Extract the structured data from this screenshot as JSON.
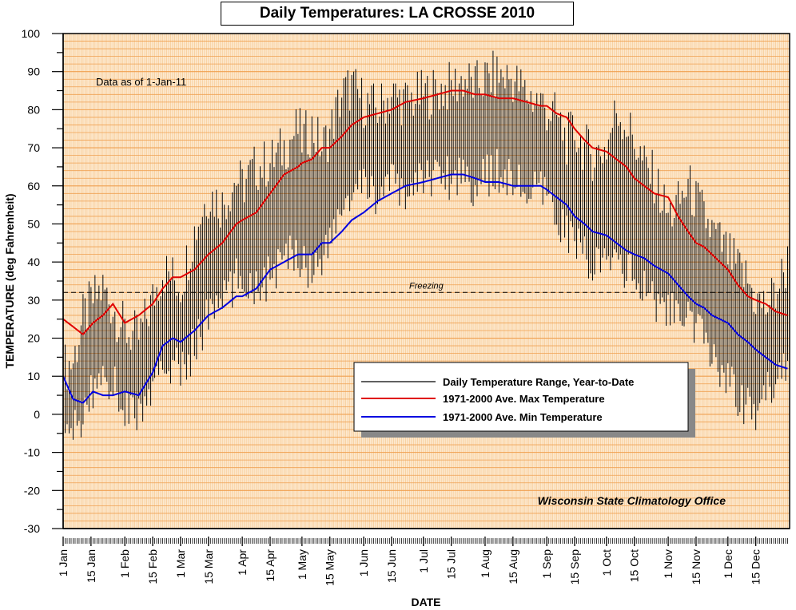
{
  "chart_data": {
    "type": "line",
    "title": "Daily Temperatures: LA CROSSE 2010",
    "xlabel": "DATE",
    "ylabel": "TEMPERATURE (deg Fahrenheit)",
    "ylim": [
      -30,
      100
    ],
    "yticks": [
      -30,
      -20,
      -10,
      0,
      10,
      20,
      30,
      40,
      50,
      60,
      70,
      80,
      90,
      100
    ],
    "xlim_days": [
      0,
      365
    ],
    "grid": true,
    "legend_position": "right, mid-height",
    "data_note": "Data as of 1-Jan-11",
    "credit": "Wisconsin State Climatology Office",
    "freezing": {
      "label": "Freezing",
      "value": 32
    },
    "x_ticks": [
      {
        "label": "1 Jan",
        "day": 0
      },
      {
        "label": "15 Jan",
        "day": 14
      },
      {
        "label": "1 Feb",
        "day": 31
      },
      {
        "label": "15 Feb",
        "day": 45
      },
      {
        "label": "1 Mar",
        "day": 59
      },
      {
        "label": "15 Mar",
        "day": 73
      },
      {
        "label": "1 Apr",
        "day": 90
      },
      {
        "label": "15 Apr",
        "day": 104
      },
      {
        "label": "1 May",
        "day": 120
      },
      {
        "label": "15 May",
        "day": 134
      },
      {
        "label": "1 Jun",
        "day": 151
      },
      {
        "label": "15 Jun",
        "day": 165
      },
      {
        "label": "1 Jul",
        "day": 181
      },
      {
        "label": "15 Jul",
        "day": 195
      },
      {
        "label": "1 Aug",
        "day": 212
      },
      {
        "label": "15 Aug",
        "day": 226
      },
      {
        "label": "1 Sep",
        "day": 243
      },
      {
        "label": "15 Sep",
        "day": 257
      },
      {
        "label": "1 Oct",
        "day": 273
      },
      {
        "label": "15 Oct",
        "day": 287
      },
      {
        "label": "1 Nov",
        "day": 304
      },
      {
        "label": "15 Nov",
        "day": 318
      },
      {
        "label": "1 Dec",
        "day": 334
      },
      {
        "label": "15 Dec",
        "day": 348
      }
    ],
    "colors": {
      "plot_bg": "#fde9cf",
      "grid_h": "#f0a050",
      "grid_v": "#f6c890",
      "range": "#000000",
      "avg_max": "#e00000",
      "avg_min": "#0000e0"
    },
    "series": [
      {
        "name": "1971-2000 Ave. Max Temperature",
        "color": "#e00000",
        "x": [
          0,
          5,
          10,
          15,
          20,
          25,
          31,
          38,
          45,
          50,
          55,
          59,
          66,
          73,
          80,
          87,
          90,
          97,
          104,
          111,
          118,
          120,
          125,
          130,
          134,
          140,
          145,
          151,
          158,
          165,
          172,
          181,
          188,
          195,
          201,
          207,
          212,
          219,
          226,
          233,
          240,
          243,
          248,
          253,
          257,
          262,
          266,
          273,
          278,
          283,
          287,
          292,
          297,
          304,
          309,
          314,
          318,
          322,
          326,
          334,
          339,
          344,
          348,
          353,
          358,
          364
        ],
        "values": [
          25,
          23,
          21,
          24,
          26,
          29,
          24,
          26,
          29,
          33,
          36,
          36,
          38,
          42,
          45,
          50,
          51,
          53,
          58,
          63,
          65,
          66,
          67,
          70,
          70,
          73,
          76,
          78,
          79,
          80,
          82,
          83,
          84,
          85,
          85,
          84,
          84,
          83,
          83,
          82,
          81,
          81,
          79,
          78,
          75,
          72,
          70,
          69,
          67,
          65,
          62,
          60,
          58,
          57,
          52,
          48,
          45,
          44,
          42,
          38,
          34,
          31,
          30,
          29,
          27,
          26
        ]
      },
      {
        "name": "1971-2000 Ave. Min Temperature",
        "color": "#0000e0",
        "x": [
          0,
          5,
          10,
          15,
          20,
          25,
          31,
          38,
          45,
          50,
          55,
          59,
          66,
          73,
          80,
          87,
          90,
          97,
          104,
          111,
          118,
          120,
          125,
          130,
          134,
          140,
          145,
          151,
          158,
          165,
          172,
          181,
          188,
          195,
          201,
          207,
          212,
          219,
          226,
          233,
          240,
          243,
          248,
          253,
          257,
          262,
          266,
          273,
          278,
          283,
          287,
          292,
          297,
          304,
          309,
          314,
          318,
          322,
          326,
          334,
          339,
          344,
          348,
          353,
          358,
          364
        ],
        "values": [
          10,
          4,
          3,
          6,
          5,
          5,
          6,
          5,
          11,
          18,
          20,
          19,
          22,
          26,
          28,
          31,
          31,
          33,
          38,
          40,
          42,
          42,
          42,
          45,
          45,
          48,
          51,
          53,
          56,
          58,
          60,
          61,
          62,
          63,
          63,
          62,
          61,
          61,
          60,
          60,
          60,
          59,
          57,
          55,
          52,
          50,
          48,
          47,
          45,
          43,
          42,
          41,
          39,
          37,
          34,
          31,
          29,
          28,
          26,
          24,
          21,
          19,
          17,
          15,
          13,
          12
        ]
      }
    ],
    "range_series": {
      "name": "Daily Temperature Range, Year-to-Date",
      "color": "#000000",
      "anchor_days": [
        0,
        5,
        10,
        15,
        20,
        25,
        31,
        38,
        45,
        50,
        55,
        59,
        66,
        73,
        80,
        87,
        90,
        97,
        104,
        111,
        118,
        120,
        125,
        130,
        134,
        140,
        145,
        151,
        158,
        165,
        172,
        181,
        188,
        195,
        201,
        207,
        212,
        219,
        226,
        233,
        240,
        243,
        248,
        253,
        257,
        262,
        266,
        273,
        278,
        283,
        287,
        292,
        297,
        304,
        309,
        314,
        318,
        322,
        326,
        334,
        339,
        344,
        348,
        353,
        358,
        364
      ],
      "anchor_high": [
        12,
        14,
        25,
        30,
        33,
        28,
        22,
        20,
        30,
        38,
        36,
        34,
        48,
        58,
        55,
        62,
        60,
        65,
        66,
        70,
        75,
        72,
        75,
        70,
        74,
        84,
        86,
        82,
        80,
        84,
        82,
        84,
        85,
        86,
        88,
        86,
        88,
        89,
        88,
        84,
        82,
        80,
        78,
        72,
        74,
        70,
        68,
        70,
        80,
        76,
        72,
        65,
        62,
        52,
        55,
        60,
        56,
        52,
        48,
        42,
        38,
        35,
        30,
        28,
        32,
        40
      ],
      "anchor_low": [
        -8,
        -5,
        0,
        6,
        12,
        8,
        2,
        0,
        5,
        12,
        14,
        10,
        18,
        26,
        30,
        35,
        36,
        34,
        36,
        40,
        44,
        40,
        38,
        42,
        44,
        55,
        56,
        60,
        58,
        60,
        58,
        62,
        64,
        62,
        64,
        60,
        62,
        64,
        62,
        58,
        58,
        56,
        52,
        48,
        45,
        42,
        40,
        38,
        42,
        38,
        36,
        32,
        30,
        28,
        25,
        24,
        22,
        20,
        15,
        10,
        5,
        2,
        0,
        5,
        10,
        15
      ]
    }
  }
}
